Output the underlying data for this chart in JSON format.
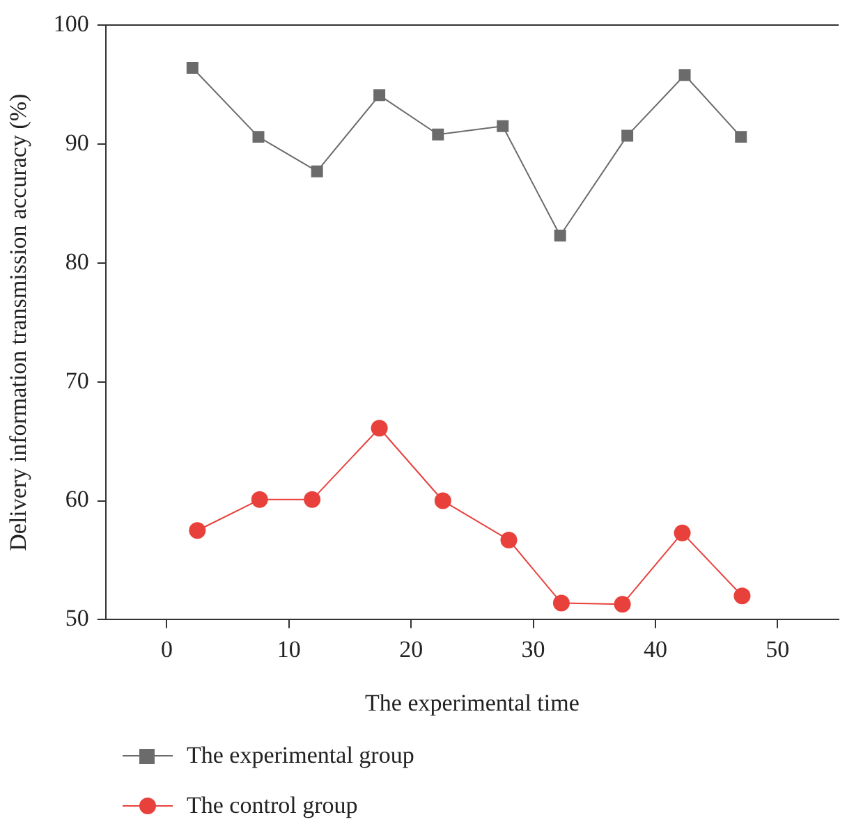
{
  "chart_data": {
    "type": "line",
    "xlabel": "The experimental time",
    "ylabel": "Delivery information transmission accuracy (%)",
    "xlim": [
      -5,
      55
    ],
    "xticks": [
      0,
      10,
      20,
      30,
      40,
      50
    ],
    "ylim": [
      50,
      100
    ],
    "yticks": [
      50,
      60,
      70,
      80,
      90,
      100
    ],
    "grid": false,
    "legend": "bottom",
    "line_style": "solid",
    "series": [
      {
        "name": "The experimental group",
        "color": "#6b6b6b",
        "marker": "square",
        "x": [
          2.1,
          7.5,
          12.3,
          17.4,
          22.2,
          27.5,
          32.2,
          37.7,
          42.4,
          47
        ],
        "values": [
          96.4,
          90.6,
          87.7,
          94.1,
          90.8,
          91.5,
          82.3,
          90.7,
          95.8,
          90.6
        ]
      },
      {
        "name": "The control group",
        "color": "#e8413c",
        "marker": "circle",
        "x": [
          2.5,
          7.6,
          11.9,
          17.4,
          22.6,
          28,
          32.3,
          37.3,
          42.2,
          47.1
        ],
        "values": [
          57.5,
          60.1,
          60.1,
          66.1,
          60,
          56.7,
          51.4,
          51.3,
          57.3,
          52
        ]
      }
    ]
  }
}
